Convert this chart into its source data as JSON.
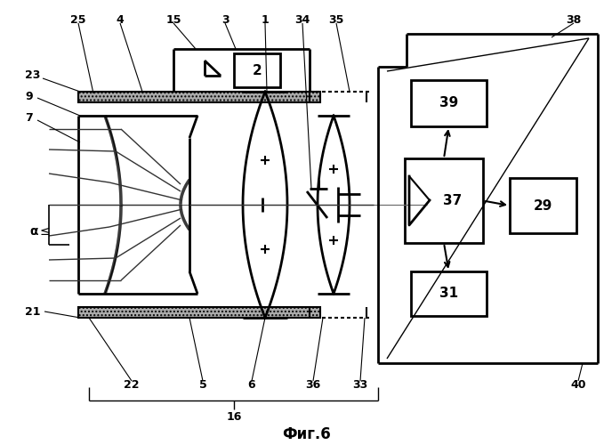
{
  "bg_color": "#ffffff",
  "line_color": "#000000",
  "lw": 1.5,
  "fig_width": 6.88,
  "fig_height": 5.0,
  "dpi": 100
}
